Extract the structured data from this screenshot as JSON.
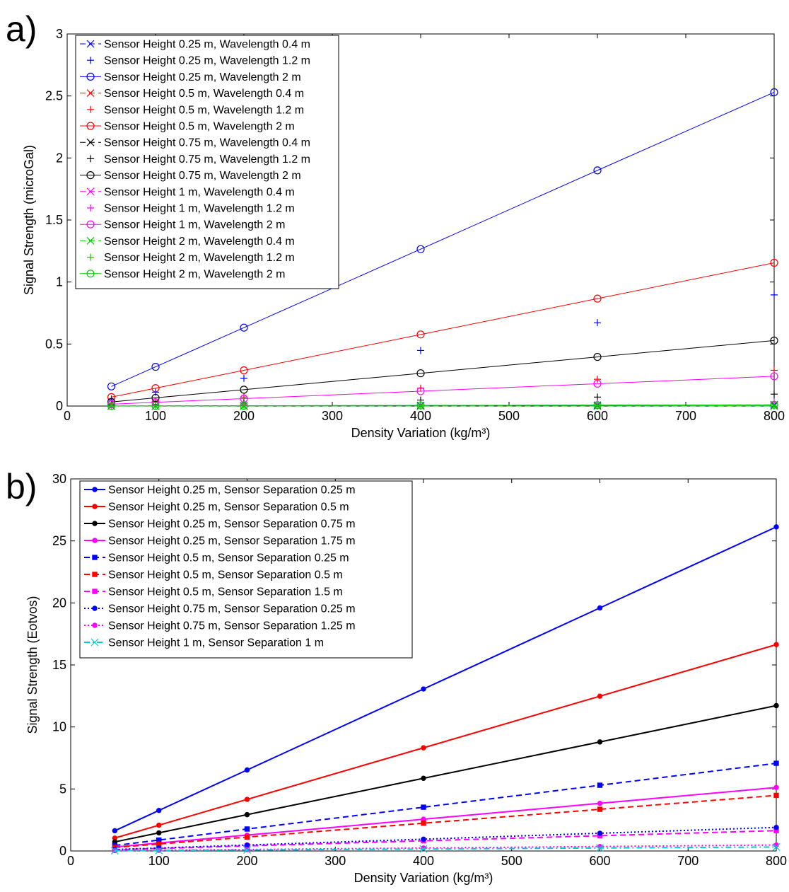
{
  "panels": [
    {
      "label": "a)"
    },
    {
      "label": "b)"
    }
  ],
  "chart_data": [
    {
      "type": "line",
      "panel": "a)",
      "xlabel": "Density Variation (kg/m³)",
      "ylabel": "Signal Strength (microGal)",
      "xlim": [
        0,
        800
      ],
      "ylim": [
        0,
        3
      ],
      "xticks": [
        0,
        100,
        200,
        300,
        400,
        500,
        600,
        700,
        800
      ],
      "yticks": [
        0,
        0.5,
        1,
        1.5,
        2,
        2.5,
        3
      ],
      "grid": false,
      "legend_position": "top-left",
      "x": [
        50,
        100,
        200,
        400,
        600,
        800
      ],
      "series": [
        {
          "name": "Sensor Height 0.25 m, Wavelength 0.4 m",
          "color": "#0000ff",
          "marker": "x",
          "line": "dash",
          "values": [
            0.0006,
            0.0012,
            0.0024,
            0.0048,
            0.0072,
            0.0096
          ]
        },
        {
          "name": "Sensor Height 0.25 m, Wavelength 1.2 m",
          "color": "#0000ff",
          "marker": "+",
          "line": "none",
          "values": [
            0.056,
            0.112,
            0.224,
            0.448,
            0.672,
            0.896
          ]
        },
        {
          "name": "Sensor Height 0.25 m, Wavelength 2 m",
          "color": "#0000ff",
          "marker": "o",
          "line": "solid",
          "values": [
            0.158,
            0.316,
            0.632,
            1.265,
            1.9,
            2.53
          ]
        },
        {
          "name": "Sensor Height 0.5 m, Wavelength 0.4 m",
          "color": "#ff0000",
          "marker": "x",
          "line": "dash",
          "values": [
            0.0001,
            0.0002,
            0.0004,
            0.0008,
            0.0012,
            0.0016
          ]
        },
        {
          "name": "Sensor Height 0.5 m, Wavelength 1.2 m",
          "color": "#ff0000",
          "marker": "+",
          "line": "none",
          "values": [
            0.018,
            0.036,
            0.072,
            0.144,
            0.216,
            0.288
          ]
        },
        {
          "name": "Sensor Height 0.5 m, Wavelength 2 m",
          "color": "#ff0000",
          "marker": "o",
          "line": "solid",
          "values": [
            0.072,
            0.144,
            0.288,
            0.577,
            0.866,
            1.155
          ]
        },
        {
          "name": "Sensor Height 0.75 m, Wavelength 0.4 m",
          "color": "#000000",
          "marker": "x",
          "line": "dash",
          "values": [
            0.0,
            0.0,
            0.0,
            0.0,
            0.0,
            0.0
          ]
        },
        {
          "name": "Sensor Height 0.75 m, Wavelength 1.2 m",
          "color": "#000000",
          "marker": "+",
          "line": "none",
          "values": [
            0.006,
            0.012,
            0.024,
            0.048,
            0.072,
            0.096
          ]
        },
        {
          "name": "Sensor Height 0.75 m, Wavelength 2 m",
          "color": "#000000",
          "marker": "o",
          "line": "solid",
          "values": [
            0.033,
            0.066,
            0.132,
            0.264,
            0.396,
            0.528
          ]
        },
        {
          "name": "Sensor Height 1 m, Wavelength 0.4 m",
          "color": "#ff00ff",
          "marker": "x",
          "line": "dash",
          "values": [
            0.0,
            0.0,
            0.0,
            0.0,
            0.0,
            0.0
          ]
        },
        {
          "name": "Sensor Height 1 m, Wavelength 1.2 m",
          "color": "#ff00ff",
          "marker": "+",
          "line": "none",
          "values": [
            0.002,
            0.004,
            0.008,
            0.016,
            0.024,
            0.032
          ]
        },
        {
          "name": "Sensor Height 1 m, Wavelength 2 m",
          "color": "#ff00ff",
          "marker": "o",
          "line": "solid",
          "values": [
            0.015,
            0.03,
            0.06,
            0.12,
            0.18,
            0.24
          ]
        },
        {
          "name": "Sensor Height 2 m, Wavelength 0.4 m",
          "color": "#00cc00",
          "marker": "x",
          "line": "dash",
          "values": [
            0.0,
            0.0,
            0.0,
            0.0,
            0.0,
            0.0
          ]
        },
        {
          "name": "Sensor Height 2 m, Wavelength 1.2 m",
          "color": "#00cc00",
          "marker": "+",
          "line": "none",
          "values": [
            0.0,
            0.0,
            0.0,
            0.0,
            0.0,
            0.0
          ]
        },
        {
          "name": "Sensor Height 2 m, Wavelength 2 m",
          "color": "#00cc00",
          "marker": "o",
          "line": "solid",
          "values": [
            0.0006,
            0.0012,
            0.0024,
            0.0048,
            0.0072,
            0.0096
          ]
        }
      ]
    },
    {
      "type": "line",
      "panel": "b)",
      "xlabel": "Density Variation (kg/m³)",
      "ylabel": "Signal Strength (Eotvos)",
      "xlim": [
        0,
        800
      ],
      "ylim": [
        0,
        30
      ],
      "xticks": [
        0,
        100,
        200,
        300,
        400,
        500,
        600,
        700,
        800
      ],
      "yticks": [
        0,
        5,
        10,
        15,
        20,
        25,
        30
      ],
      "grid": false,
      "legend_position": "top-left",
      "x": [
        50,
        100,
        200,
        400,
        600,
        800
      ],
      "series": [
        {
          "name": "Sensor Height 0.25 m, Sensor Separation 0.25 m",
          "color": "#0000ff",
          "marker": "dot",
          "line": "solid",
          "values": [
            1.63,
            3.27,
            6.53,
            13.06,
            19.6,
            26.13
          ]
        },
        {
          "name": "Sensor Height 0.25 m, Sensor Separation 0.5 m",
          "color": "#ff0000",
          "marker": "dot",
          "line": "solid",
          "values": [
            1.04,
            2.08,
            4.16,
            8.32,
            12.48,
            16.64
          ]
        },
        {
          "name": "Sensor Height 0.25 m, Sensor Separation 0.75 m",
          "color": "#000000",
          "marker": "dot",
          "line": "solid",
          "values": [
            0.73,
            1.46,
            2.93,
            5.86,
            8.79,
            11.72
          ]
        },
        {
          "name": "Sensor Height 0.25 m, Sensor Separation 1.75 m",
          "color": "#ff00ff",
          "marker": "dot",
          "line": "solid",
          "values": [
            0.32,
            0.64,
            1.28,
            2.56,
            3.84,
            5.12
          ]
        },
        {
          "name": "Sensor Height 0.5 m, Sensor Separation 0.25 m",
          "color": "#0000ff",
          "marker": "square",
          "line": "dash",
          "values": [
            0.44,
            0.88,
            1.77,
            3.53,
            5.3,
            7.07
          ]
        },
        {
          "name": "Sensor Height 0.5 m, Sensor Separation 0.5 m",
          "color": "#ff0000",
          "marker": "square",
          "line": "dash",
          "values": [
            0.28,
            0.56,
            1.12,
            2.24,
            3.36,
            4.48
          ]
        },
        {
          "name": "Sensor Height 0.5 m, Sensor Separation 1.5 m",
          "color": "#ff00ff",
          "marker": "square",
          "line": "dash",
          "values": [
            0.1,
            0.2,
            0.41,
            0.82,
            1.23,
            1.64
          ]
        },
        {
          "name": "Sensor Height 0.75 m, Sensor Separation 0.25 m",
          "color": "#0000ff",
          "marker": "dot",
          "line": "dot",
          "values": [
            0.12,
            0.24,
            0.48,
            0.95,
            1.43,
            1.9
          ]
        },
        {
          "name": "Sensor Height 0.75 m, Sensor Separation 1.25 m",
          "color": "#ff00ff",
          "marker": "dot",
          "line": "dot",
          "values": [
            0.03,
            0.06,
            0.12,
            0.24,
            0.36,
            0.48
          ]
        },
        {
          "name": "Sensor Height 1 m, Sensor Separation 1 m",
          "color": "#00cccc",
          "marker": "x",
          "line": "dashdot",
          "values": [
            0.02,
            0.04,
            0.08,
            0.16,
            0.24,
            0.32
          ]
        }
      ]
    }
  ]
}
